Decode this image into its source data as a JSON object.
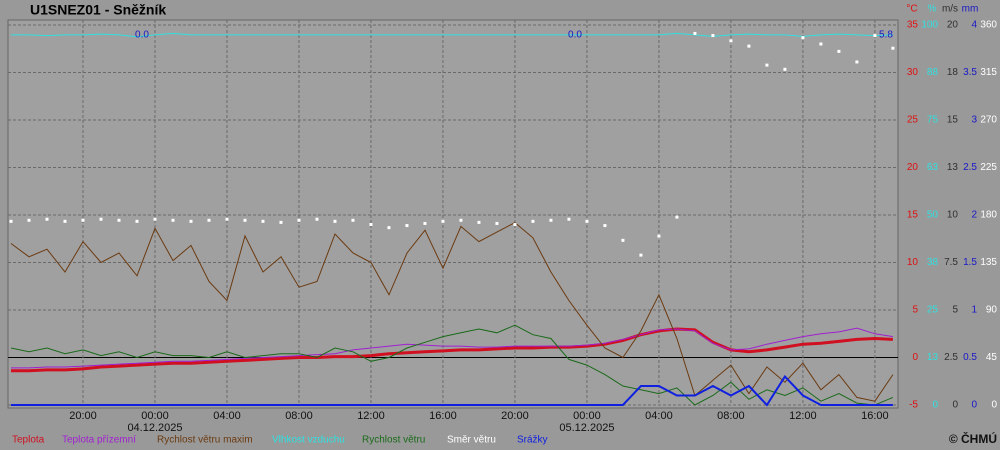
{
  "chart_data": {
    "type": "line",
    "title": "U1SNEZ01 - Sněžník",
    "copyright": "© ČHMÚ",
    "x": [
      "2025-12-03T16:00",
      "2025-12-03T17:00",
      "2025-12-03T18:00",
      "2025-12-03T19:00",
      "2025-12-03T20:00",
      "2025-12-03T21:00",
      "2025-12-03T22:00",
      "2025-12-03T23:00",
      "2025-12-04T00:00",
      "2025-12-04T01:00",
      "2025-12-04T02:00",
      "2025-12-04T03:00",
      "2025-12-04T04:00",
      "2025-12-04T05:00",
      "2025-12-04T06:00",
      "2025-12-04T07:00",
      "2025-12-04T08:00",
      "2025-12-04T09:00",
      "2025-12-04T10:00",
      "2025-12-04T11:00",
      "2025-12-04T12:00",
      "2025-12-04T13:00",
      "2025-12-04T14:00",
      "2025-12-04T15:00",
      "2025-12-04T16:00",
      "2025-12-04T17:00",
      "2025-12-04T18:00",
      "2025-12-04T19:00",
      "2025-12-04T20:00",
      "2025-12-04T21:00",
      "2025-12-04T22:00",
      "2025-12-04T23:00",
      "2025-12-05T00:00",
      "2025-12-05T01:00",
      "2025-12-05T02:00",
      "2025-12-05T03:00",
      "2025-12-05T04:00",
      "2025-12-05T05:00",
      "2025-12-05T06:00",
      "2025-12-05T07:00",
      "2025-12-05T08:00",
      "2025-12-05T09:00",
      "2025-12-05T10:00",
      "2025-12-05T11:00",
      "2025-12-05T12:00",
      "2025-12-05T13:00",
      "2025-12-05T14:00",
      "2025-12-05T15:00",
      "2025-12-05T16:00",
      "2025-12-05T17:00"
    ],
    "xlim": [
      "2025-12-03T15:50",
      "2025-12-05T17:17"
    ],
    "xticks": [
      {
        "value": "2025-12-03T20:00",
        "label": "20:00"
      },
      {
        "value": "2025-12-04T00:00",
        "label": "00:00"
      },
      {
        "value": "2025-12-04T04:00",
        "label": "04:00"
      },
      {
        "value": "2025-12-04T08:00",
        "label": "08:00"
      },
      {
        "value": "2025-12-04T12:00",
        "label": "12:00"
      },
      {
        "value": "2025-12-04T16:00",
        "label": "16:00"
      },
      {
        "value": "2025-12-04T20:00",
        "label": "20:00"
      },
      {
        "value": "2025-12-05T00:00",
        "label": "00:00"
      },
      {
        "value": "2025-12-05T04:00",
        "label": "04:00"
      },
      {
        "value": "2025-12-05T08:00",
        "label": "08:00"
      },
      {
        "value": "2025-12-05T12:00",
        "label": "12:00"
      },
      {
        "value": "2025-12-05T16:00",
        "label": "16:00"
      }
    ],
    "xdates": [
      {
        "value": "2025-12-04T00:00",
        "label": "04.12.2025"
      },
      {
        "value": "2025-12-05T00:00",
        "label": "05.12.2025"
      }
    ],
    "grid": true,
    "axes": [
      {
        "unit": "°C",
        "color": "#e01010",
        "lim": [
          -5,
          35
        ],
        "ticks": [
          -5,
          0,
          5,
          10,
          15,
          20,
          25,
          30,
          35
        ]
      },
      {
        "unit": "%",
        "color": "#30e0e0",
        "lim": [
          0,
          100
        ],
        "ticks": [
          0,
          {
            "value": 12.5,
            "label": "13"
          },
          25,
          {
            "value": 37.5,
            "label": "38"
          },
          50,
          {
            "value": 62.5,
            "label": "63"
          },
          75,
          {
            "value": 87.5,
            "label": "88"
          },
          100
        ]
      },
      {
        "unit": "m/s",
        "color": "#303030",
        "lim": [
          0,
          20
        ],
        "ticks": [
          0,
          2.5,
          5,
          7.5,
          10,
          {
            "value": 12.5,
            "label": "13"
          },
          15,
          {
            "value": 17.5,
            "label": "18"
          },
          20
        ]
      },
      {
        "unit": "mm",
        "color": "#1818c8",
        "lim": [
          0,
          4
        ],
        "ticks": [
          0,
          0.5,
          1,
          1.5,
          2,
          2.5,
          3,
          3.5,
          4
        ]
      },
      {
        "color": "#ffffff",
        "lim": [
          0,
          360
        ],
        "ticks": [
          0,
          45,
          90,
          135,
          180,
          225,
          270,
          315,
          360
        ]
      }
    ],
    "annotations": [
      "0.0",
      "0.0",
      "5.8"
    ],
    "series": [
      {
        "name": "Teplota",
        "color": "#d01020",
        "axis": 0,
        "width": 3,
        "values": [
          -1.4,
          -1.4,
          -1.3,
          -1.3,
          -1.2,
          -1.0,
          -0.9,
          -0.8,
          -0.7,
          -0.6,
          -0.6,
          -0.5,
          -0.4,
          -0.3,
          -0.2,
          -0.1,
          0.0,
          0.0,
          0.1,
          0.1,
          0.2,
          0.4,
          0.5,
          0.6,
          0.7,
          0.8,
          0.8,
          0.9,
          1.0,
          1.0,
          1.1,
          1.1,
          1.2,
          1.4,
          1.8,
          2.4,
          2.8,
          3.0,
          2.9,
          1.6,
          0.8,
          0.6,
          0.8,
          1.1,
          1.4,
          1.5,
          1.7,
          1.9,
          2.0,
          1.9
        ]
      },
      {
        "name": "Teplota přízemní",
        "color": "#a020d0",
        "axis": 0,
        "width": 1,
        "values": [
          -1.1,
          -1.1,
          -1.0,
          -1.0,
          -0.9,
          -0.8,
          -0.7,
          -0.6,
          -0.5,
          -0.4,
          -0.4,
          -0.3,
          -0.2,
          -0.1,
          0.0,
          0.1,
          0.2,
          0.3,
          0.4,
          0.8,
          1.0,
          1.2,
          1.4,
          1.3,
          1.2,
          1.2,
          1.1,
          1.1,
          1.2,
          1.2,
          1.2,
          1.2,
          1.3,
          1.5,
          1.9,
          2.4,
          2.9,
          3.0,
          2.8,
          1.5,
          0.8,
          0.9,
          1.4,
          1.8,
          2.2,
          2.5,
          2.7,
          3.1,
          2.5,
          2.2
        ]
      },
      {
        "name": "Rychlost větru maxim",
        "color": "#6b3a10",
        "axis": 2,
        "width": 1,
        "values": [
          8.5,
          7.8,
          8.2,
          7.0,
          8.6,
          7.5,
          8.0,
          6.8,
          9.3,
          7.6,
          8.4,
          6.5,
          5.5,
          8.9,
          7.0,
          7.8,
          6.2,
          6.5,
          9.0,
          8.0,
          7.5,
          5.8,
          8.0,
          9.2,
          7.2,
          9.4,
          8.6,
          9.1,
          9.6,
          8.8,
          7.0,
          5.5,
          4.2,
          3.0,
          2.5,
          3.9,
          5.8,
          3.5,
          0.5,
          1.3,
          2.1,
          0.6,
          2.0,
          1.2,
          2.2,
          0.8,
          1.6,
          0.4,
          0.2,
          1.6
        ]
      },
      {
        "name": "Vlhkost vzduchu",
        "color": "#30e0e0",
        "axis": 1,
        "width": 1,
        "values": [
          97.4,
          97.4,
          97.2,
          97.4,
          97.4,
          97.6,
          97.4,
          96.9,
          97.4,
          97.8,
          97.4,
          97.4,
          97.4,
          97.4,
          97.4,
          97.4,
          97.4,
          97.4,
          97.4,
          97.4,
          97.4,
          97.4,
          97.4,
          97.4,
          97.4,
          97.4,
          97.4,
          97.4,
          97.4,
          97.4,
          97.4,
          97.4,
          97.4,
          97.4,
          97.4,
          97.4,
          97.4,
          97.8,
          97.4,
          97.0,
          97.4,
          97.6,
          97.4,
          97.4,
          97.0,
          97.4,
          97.6,
          97.4,
          97.2,
          97.4
        ]
      },
      {
        "name": "Rychlost větru",
        "color": "#1a6a1a",
        "axis": 2,
        "width": 1,
        "values": [
          3.0,
          2.8,
          3.0,
          2.7,
          2.9,
          2.6,
          2.8,
          2.5,
          2.8,
          2.6,
          2.6,
          2.5,
          2.8,
          2.5,
          2.6,
          2.7,
          2.7,
          2.5,
          3.0,
          2.8,
          2.3,
          2.5,
          3.0,
          3.3,
          3.6,
          3.8,
          4.0,
          3.8,
          4.2,
          3.7,
          3.5,
          2.4,
          2.1,
          1.6,
          1.0,
          0.8,
          0.6,
          0.9,
          0.0,
          0.5,
          1.2,
          0.3,
          0.8,
          0.5,
          0.9,
          0.2,
          0.6,
          0.1,
          0.0,
          0.4
        ]
      },
      {
        "name": "Směr větru",
        "color": "#ffffff",
        "axis": 4,
        "style": "points",
        "values": [
          174,
          175,
          176,
          174,
          175,
          176,
          175,
          174,
          176,
          175,
          174,
          175,
          176,
          175,
          174,
          173,
          175,
          176,
          174,
          175,
          171,
          168,
          170,
          172,
          174,
          175,
          173,
          172,
          171,
          174,
          175,
          176,
          174,
          170,
          156,
          142,
          160,
          178,
          352,
          350,
          345,
          340,
          322,
          318,
          348,
          342,
          335,
          325,
          350,
          338
        ]
      },
      {
        "name": "Srážky",
        "color": "#1020e0",
        "axis": 3,
        "width": 2,
        "values": [
          0,
          0,
          0,
          0,
          0,
          0,
          0,
          0,
          0,
          0,
          0,
          0,
          0,
          0,
          0,
          0,
          0,
          0,
          0,
          0,
          0,
          0,
          0,
          0,
          0,
          0,
          0,
          0,
          0,
          0,
          0,
          0,
          0,
          0,
          0,
          0.2,
          0.2,
          0.1,
          0.1,
          0.2,
          0.1,
          0.2,
          0,
          0.3,
          0.1,
          0,
          0,
          0,
          0,
          0
        ]
      }
    ]
  }
}
